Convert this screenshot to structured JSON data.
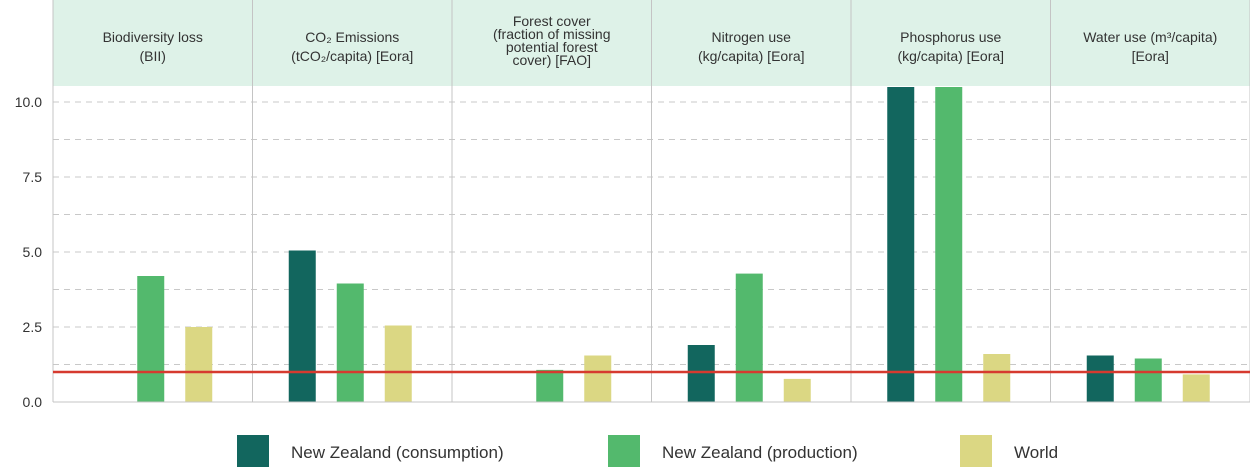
{
  "chart_data": {
    "type": "bar",
    "panels": [
      {
        "title_lines": [
          "Biodiversity loss",
          "(BII)"
        ],
        "values": [
          null,
          4.2,
          2.5
        ]
      },
      {
        "title_lines": [
          "CO₂ Emissions",
          "(tCO₂/capita) [Eora]"
        ],
        "values": [
          5.05,
          3.95,
          2.55
        ]
      },
      {
        "title_lines": [
          "Forest cover",
          "(fraction of missing",
          "potential forest",
          "cover) [FAO]"
        ],
        "values": [
          null,
          1.07,
          1.55
        ]
      },
      {
        "title_lines": [
          "Nitrogen use",
          "(kg/capita) [Eora]"
        ],
        "values": [
          1.9,
          4.28,
          0.77
        ]
      },
      {
        "title_lines": [
          "Phosphorus use",
          "(kg/capita) [Eora]"
        ],
        "values": [
          10.5,
          10.5,
          1.6
        ]
      },
      {
        "title_lines": [
          "Water use (m³/capita)",
          "[Eora]"
        ],
        "values": [
          1.55,
          1.45,
          0.92
        ]
      }
    ],
    "series": [
      {
        "name": "New Zealand (consumption)",
        "color": "#12665e"
      },
      {
        "name": "New Zealand (production)",
        "color": "#53b96d"
      },
      {
        "name": "World",
        "color": "#dbd783"
      }
    ],
    "yticks": [
      "0.0",
      "2.5",
      "5.0",
      "7.5",
      "10.0"
    ],
    "ylim": [
      0,
      10.5
    ],
    "reference_line": {
      "value": 1.0,
      "color": "#d63a2f"
    },
    "grid": true,
    "header_color": "#def2e8",
    "legend_position": "bottom"
  }
}
